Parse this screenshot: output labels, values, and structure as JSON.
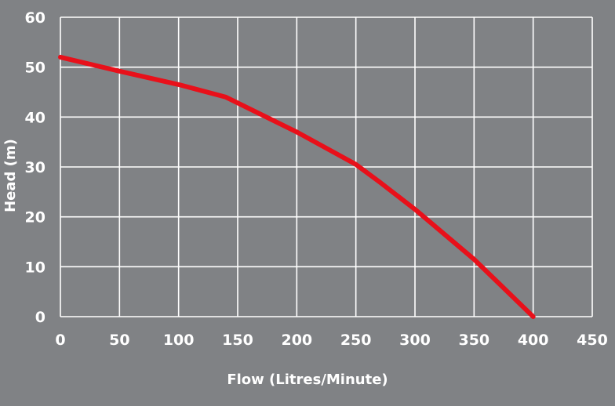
{
  "colors": {
    "background": "#808285",
    "grid": "#ffffff",
    "line": "#e8101a",
    "text": "#ffffff"
  },
  "chart_data": {
    "type": "line",
    "title": "",
    "xlabel": "Flow (Litres/Minute)",
    "ylabel": "Head (m)",
    "xlim": [
      0,
      450
    ],
    "ylim": [
      0,
      60
    ],
    "xticks": [
      "0",
      "50",
      "100",
      "150",
      "200",
      "250",
      "300",
      "350",
      "400",
      "450"
    ],
    "yticks": [
      "0",
      "10",
      "20",
      "30",
      "40",
      "50",
      "60"
    ],
    "grid": true,
    "legend": "none",
    "series": [
      {
        "x": [
          0,
          50,
          100,
          140,
          200,
          250,
          270,
          300,
          350,
          400
        ],
        "y": [
          52,
          49.2,
          46.5,
          44,
          37,
          30.5,
          27,
          21.5,
          11.5,
          0
        ]
      }
    ]
  }
}
